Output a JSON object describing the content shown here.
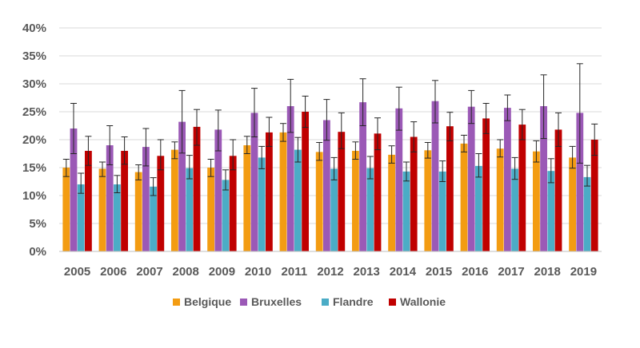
{
  "chart_data": {
    "type": "bar",
    "title": "",
    "xlabel": "",
    "ylabel": "",
    "ylim": [
      0,
      40
    ],
    "y_ticks": [
      "0%",
      "5%",
      "10%",
      "15%",
      "20%",
      "25%",
      "30%",
      "35%",
      "40%"
    ],
    "y_tick_values": [
      0,
      5,
      10,
      15,
      20,
      25,
      30,
      35,
      40
    ],
    "grid": true,
    "legend_position": "bottom",
    "error_bars": true,
    "categories": [
      "2005",
      "2006",
      "2007",
      "2008",
      "2009",
      "2010",
      "2011",
      "2012",
      "2013",
      "2014",
      "2015",
      "2016",
      "2017",
      "2018",
      "2019"
    ],
    "series": [
      {
        "name": "Belgique",
        "color": "#F39C12",
        "values": [
          15.0,
          14.8,
          14.2,
          18.2,
          15.0,
          19.0,
          21.3,
          17.8,
          18.0,
          17.3,
          18.1,
          19.3,
          18.4,
          17.9,
          16.8
        ],
        "err_low": [
          13.4,
          13.4,
          12.8,
          16.6,
          13.4,
          17.5,
          19.7,
          16.3,
          16.5,
          15.8,
          16.7,
          17.8,
          16.9,
          16.0,
          14.9
        ],
        "err_high": [
          16.5,
          16.0,
          15.5,
          19.6,
          16.5,
          20.6,
          22.9,
          19.5,
          19.6,
          18.9,
          19.5,
          20.8,
          20.0,
          19.8,
          18.8
        ]
      },
      {
        "name": "Bruxelles",
        "color": "#9B59B6",
        "values": [
          22.0,
          19.0,
          18.7,
          23.2,
          21.8,
          24.8,
          26.0,
          23.5,
          26.7,
          25.6,
          26.9,
          25.9,
          25.7,
          26.0,
          24.8
        ],
        "err_low": [
          17.5,
          15.5,
          15.3,
          17.6,
          18.0,
          20.5,
          21.3,
          19.9,
          22.5,
          21.7,
          23.0,
          22.9,
          23.4,
          20.2,
          15.8
        ],
        "err_high": [
          26.5,
          22.5,
          22.0,
          28.8,
          25.3,
          29.2,
          30.8,
          27.2,
          30.9,
          29.4,
          30.6,
          28.8,
          28.0,
          31.6,
          33.6
        ]
      },
      {
        "name": "Flandre",
        "color": "#4BACC6",
        "values": [
          12.0,
          12.0,
          11.6,
          14.9,
          12.8,
          16.8,
          18.2,
          14.8,
          14.9,
          14.3,
          14.3,
          15.3,
          14.8,
          14.4,
          13.3
        ],
        "err_low": [
          10.4,
          10.5,
          10.0,
          13.0,
          11.0,
          14.8,
          16.0,
          12.8,
          13.0,
          12.6,
          12.5,
          13.3,
          12.9,
          12.3,
          11.7
        ],
        "err_high": [
          14.0,
          13.6,
          13.2,
          17.2,
          14.6,
          18.8,
          20.4,
          16.8,
          17.0,
          16.0,
          16.2,
          17.5,
          16.8,
          16.6,
          15.4
        ]
      },
      {
        "name": "Wallonie",
        "color": "#C00000",
        "values": [
          18.0,
          18.0,
          17.1,
          22.3,
          17.1,
          21.3,
          25.0,
          21.4,
          21.1,
          20.5,
          22.4,
          23.8,
          22.7,
          21.8,
          20.0
        ],
        "err_low": [
          15.4,
          15.6,
          14.6,
          19.0,
          14.6,
          18.8,
          22.2,
          18.4,
          18.2,
          17.8,
          19.8,
          21.1,
          20.0,
          18.8,
          17.2
        ],
        "err_high": [
          20.6,
          20.5,
          20.0,
          25.4,
          20.0,
          24.0,
          27.8,
          24.8,
          23.9,
          23.2,
          24.9,
          26.5,
          25.4,
          24.8,
          22.8
        ]
      }
    ]
  }
}
